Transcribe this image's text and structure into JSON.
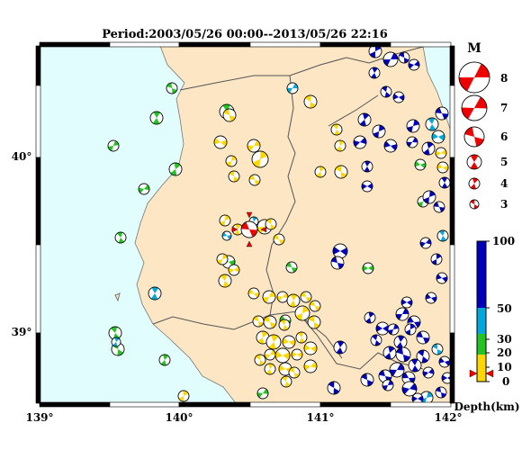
{
  "title": "Period:2003/05/26 00:00--2013/05/26 22:16",
  "lon_ticks": [
    "139°",
    "140°",
    "141°",
    "142°"
  ],
  "lat_ticks": [
    "40°",
    "39°"
  ],
  "magnitude_legend": {
    "header": "M",
    "levels": [
      "8",
      "7",
      "6",
      "5",
      "4",
      "3"
    ]
  },
  "depth_legend": {
    "title": "Depth(km)",
    "ticks": [
      "100",
      "50",
      "30",
      "20",
      "10",
      "0"
    ],
    "colors": {
      "shallow": "#ffd700",
      "mid_shallow": "#22c322",
      "mid": "#00a8dc",
      "deep": "#0000bb",
      "highlight": "#ee0000"
    }
  },
  "colors": {
    "sea": "#e2fdfd",
    "land": "#fce6c4",
    "border": "#555555"
  }
}
